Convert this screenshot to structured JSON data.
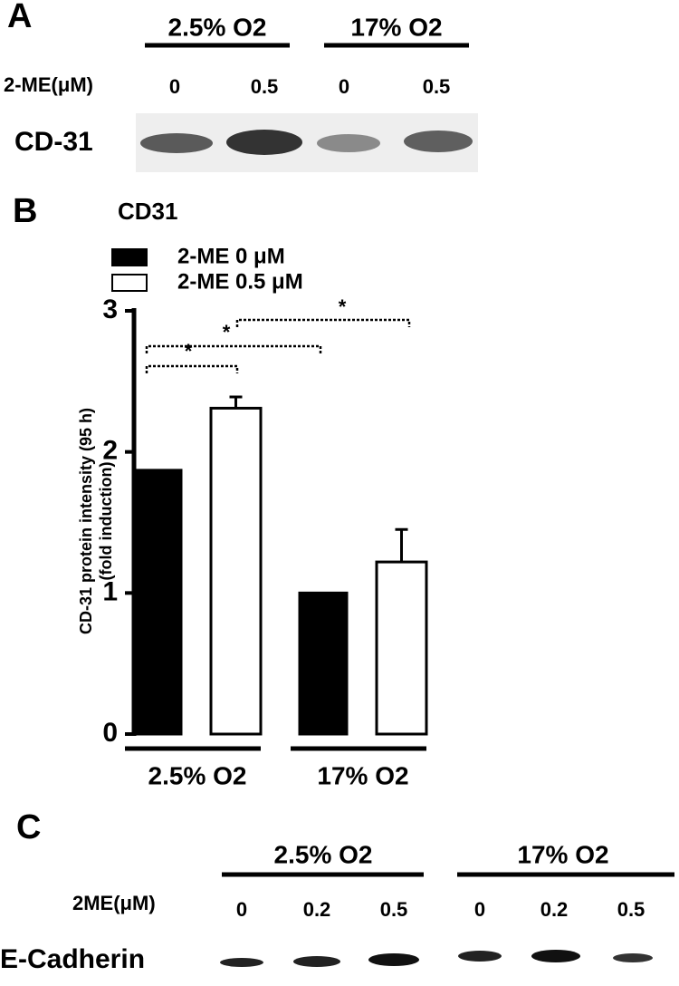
{
  "panel_a": {
    "label": "A",
    "groups": [
      "2.5% O2",
      "17% O2"
    ],
    "row_label": "2-ME(μM)",
    "doses": [
      "0",
      "0.5",
      "0",
      "0.5"
    ],
    "blot_label": "CD-31"
  },
  "chart_data": {
    "type": "bar",
    "panel_label": "B",
    "title": "CD31",
    "y_label": [
      "CD-31 protein intensity (95 h)",
      "(fold induction)"
    ],
    "categories": [
      "2.5% O2",
      "17% O2"
    ],
    "series": [
      {
        "name": "2-ME 0 μM",
        "color": "#000000",
        "values": [
          1.87,
          1.0
        ]
      },
      {
        "name": "2-ME 0.5 μM",
        "color": "#ffffff",
        "values": [
          2.31,
          1.22
        ],
        "errors": [
          0.08,
          0.23
        ]
      }
    ],
    "annotations": [
      "*",
      "*",
      "*"
    ],
    "ylim": [
      0,
      3
    ],
    "yticks": [
      0,
      1,
      2,
      3
    ],
    "grid": false
  },
  "panel_c": {
    "label": "C",
    "groups": [
      "2.5% O2",
      "17% O2"
    ],
    "row_label": "2ME(μM)",
    "doses": [
      "0",
      "0.2",
      "0.5",
      "0",
      "0.2",
      "0.5"
    ],
    "blot_label": "E-Cadherin"
  }
}
